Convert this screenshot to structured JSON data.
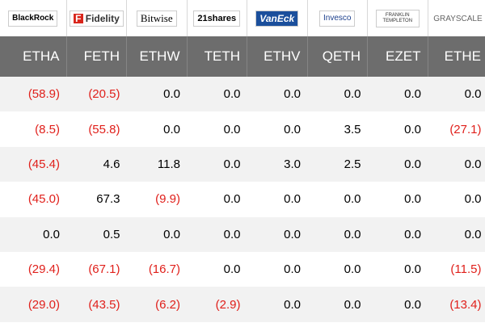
{
  "logos": [
    "BlackRock",
    "Fidelity",
    "Bitwise",
    "21shares",
    "VanEck",
    "Invesco",
    "FRANKLIN TEMPLETON",
    "GRAYSCALE"
  ],
  "tickers": [
    "ETHA",
    "FETH",
    "ETHW",
    "TETH",
    "ETHV",
    "QETH",
    "EZET",
    "ETHE"
  ],
  "rows": [
    [
      "(58.9)",
      "(20.5)",
      "0.0",
      "0.0",
      "0.0",
      "0.0",
      "0.0",
      "0.0"
    ],
    [
      "(8.5)",
      "(55.8)",
      "0.0",
      "0.0",
      "0.0",
      "3.5",
      "0.0",
      "(27.1)"
    ],
    [
      "(45.4)",
      "4.6",
      "11.8",
      "0.0",
      "3.0",
      "2.5",
      "0.0",
      "0.0"
    ],
    [
      "(45.0)",
      "67.3",
      "(9.9)",
      "0.0",
      "0.0",
      "0.0",
      "0.0",
      "0.0"
    ],
    [
      "0.0",
      "0.5",
      "0.0",
      "0.0",
      "0.0",
      "0.0",
      "0.0",
      "0.0"
    ],
    [
      "(29.4)",
      "(67.1)",
      "(16.7)",
      "0.0",
      "0.0",
      "0.0",
      "0.0",
      "(11.5)"
    ],
    [
      "(29.0)",
      "(43.5)",
      "(6.2)",
      "(2.9)",
      "0.0",
      "0.0",
      "0.0",
      "(13.4)"
    ]
  ]
}
